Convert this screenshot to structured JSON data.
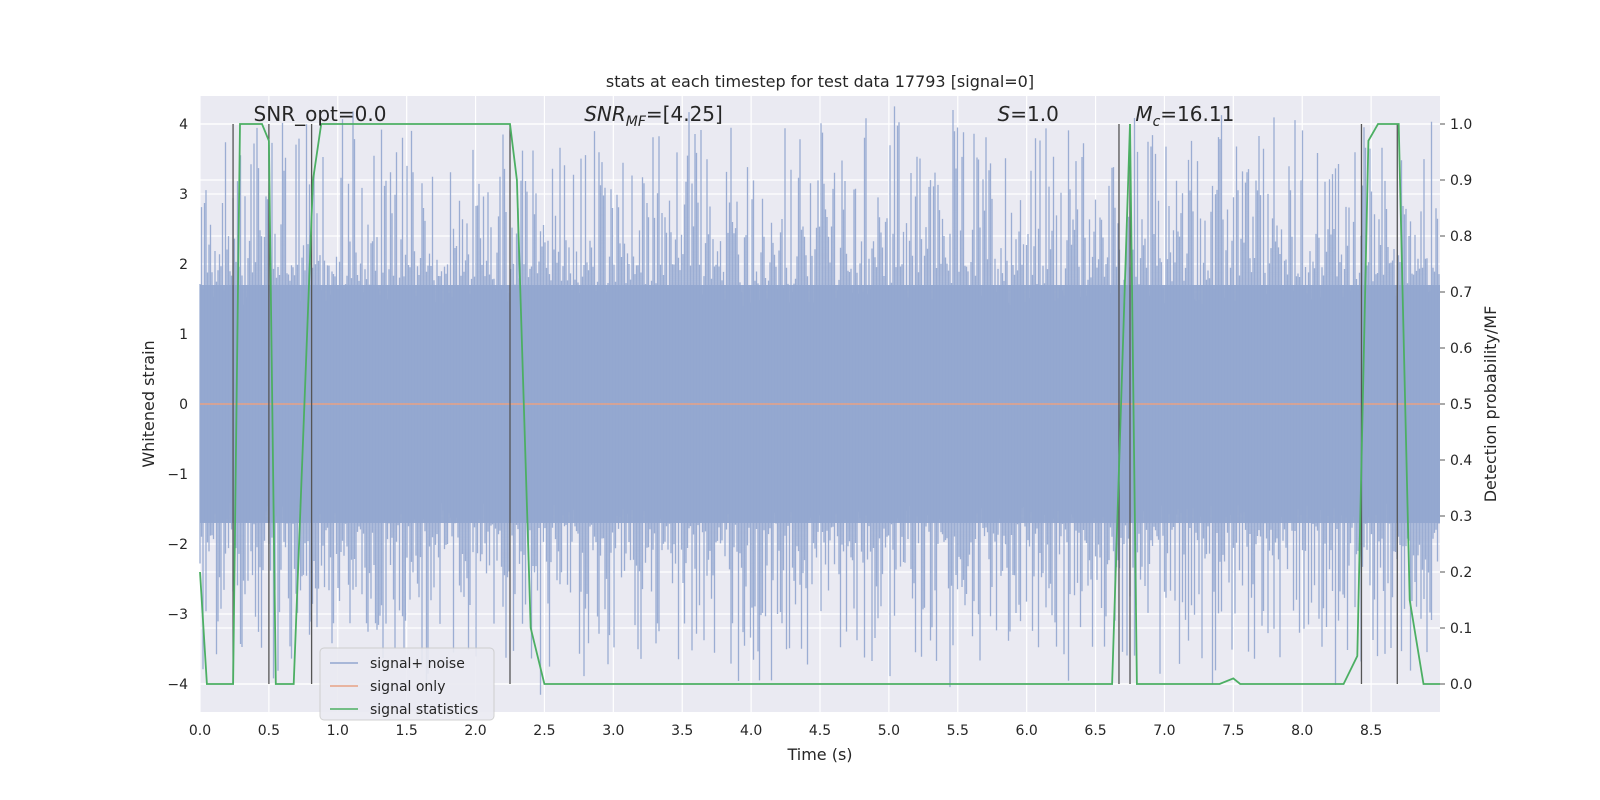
{
  "chart_data": {
    "type": "line",
    "title": "stats at each timestep for test data 17793 [signal=0]",
    "xlabel": "Time (s)",
    "ylabel": "Whitened strain",
    "y2label": "Detection probability/MF",
    "xlim": [
      0,
      9.0
    ],
    "ylim": [
      -4.4,
      4.4
    ],
    "y2lim": [
      -0.05,
      1.05
    ],
    "xticks": [
      "0.0",
      "0.5",
      "1.0",
      "1.5",
      "2.0",
      "2.5",
      "3.0",
      "3.5",
      "4.0",
      "4.5",
      "5.0",
      "5.5",
      "6.0",
      "6.5",
      "7.0",
      "7.5",
      "8.0",
      "8.5"
    ],
    "yticks": [
      "4",
      "3",
      "2",
      "1",
      "0",
      "−1",
      "−2",
      "−3",
      "−4"
    ],
    "y2ticks": [
      "1.0",
      "0.9",
      "0.8",
      "0.7",
      "0.6",
      "0.5",
      "0.4",
      "0.3",
      "0.2",
      "0.1",
      "0.0"
    ],
    "grid": true,
    "legend_position": "lower-left",
    "annotations": [
      {
        "text": "SNR_opt=0.0",
        "x": 0.2
      },
      {
        "text": "SNR_MF=[4.25]",
        "x": 2.6
      },
      {
        "text": "S=1.0",
        "x": 5.6
      },
      {
        "text": "M_c=16.11",
        "x": 6.6
      }
    ],
    "series": [
      {
        "name": "signal+ noise",
        "color": "#92a6cf",
        "style": "noise band",
        "envelope_typical": [
          -1.7,
          1.7
        ],
        "envelope_peak": [
          -3.9,
          4.0
        ]
      },
      {
        "name": "signal only",
        "color": "#e8a184",
        "x": [
          0,
          9.0
        ],
        "y": [
          0,
          0
        ]
      },
      {
        "name": "signal statistics",
        "color": "#4caf63",
        "axis": "right",
        "x": [
          0.0,
          0.05,
          0.24,
          0.29,
          0.45,
          0.5,
          0.55,
          0.68,
          0.82,
          0.88,
          2.25,
          2.3,
          2.4,
          2.5,
          6.62,
          6.75,
          6.8,
          7.4,
          7.5,
          7.55,
          8.3,
          8.4,
          8.48,
          8.55,
          8.7,
          8.78,
          8.88,
          9.0
        ],
        "y": [
          0.2,
          0.0,
          0.0,
          1.0,
          1.0,
          0.97,
          0.0,
          0.0,
          0.9,
          1.0,
          1.0,
          0.9,
          0.1,
          0.0,
          0.0,
          1.0,
          0.0,
          0.0,
          0.01,
          0.0,
          0.0,
          0.05,
          0.97,
          1.0,
          1.0,
          0.15,
          0.0,
          0.0
        ]
      }
    ],
    "vlines_x": [
      0.24,
      0.5,
      0.81,
      2.25,
      6.67,
      6.75,
      8.43,
      8.69
    ]
  },
  "legend": [
    {
      "label": "signal+ noise",
      "color": "#92a6cf"
    },
    {
      "label": "signal only",
      "color": "#e8a184"
    },
    {
      "label": "signal statistics",
      "color": "#4caf63"
    }
  ]
}
